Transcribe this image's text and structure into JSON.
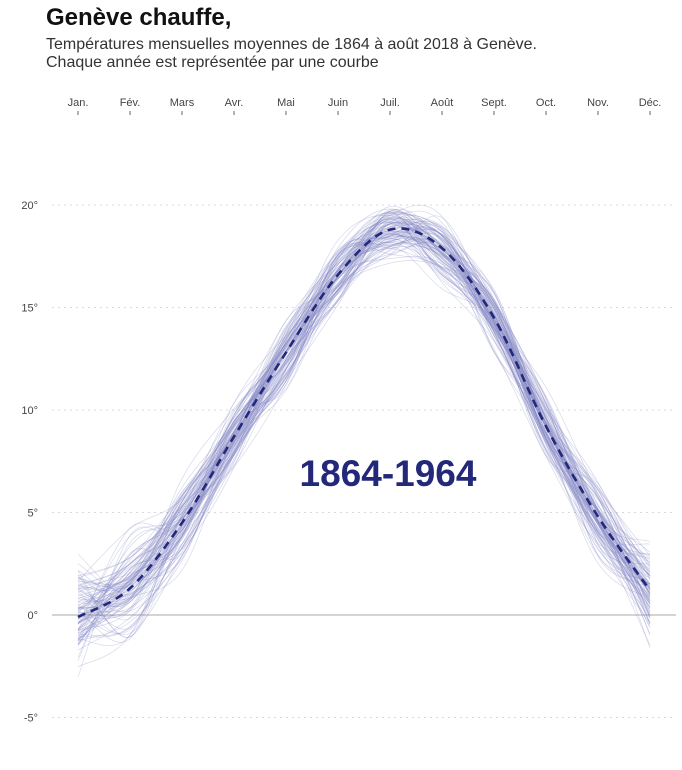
{
  "title": "Genève chauffe,",
  "subtitle_line1": "Températures mensuelles moyennes de 1864 à août 2018 à Genève.",
  "subtitle_line2": "Chaque année est représentée par une courbe",
  "chart_data": {
    "type": "line",
    "title": "Genève chauffe,",
    "xlabel": "",
    "ylabel": "",
    "categories": [
      "Jan.",
      "Fév.",
      "Mars",
      "Avr.",
      "Mai",
      "Juin",
      "Juil.",
      "Août",
      "Sept.",
      "Oct.",
      "Nov.",
      "Déc."
    ],
    "y_ticks": [
      -5,
      0,
      5,
      10,
      15,
      20
    ],
    "y_tick_labels": [
      "-5°",
      "0°",
      "5°",
      "10°",
      "15°",
      "20°"
    ],
    "ylim": [
      -7.5,
      24
    ],
    "grid": true,
    "annotation": "1864-1964",
    "colors": {
      "years": "#8286c4",
      "mean": "#232878",
      "zero": "#aaaaaa",
      "grid": "#d8d8d8"
    },
    "series": [
      {
        "values": [
          -0.1,
          1.3,
          4.5,
          8.7,
          12.8,
          16.6,
          18.8,
          17.9,
          14.5,
          9.2,
          4.8,
          1.2
        ],
        "style": "dashed"
      }
    ],
    "year_spread": [
      2.8,
      2.8,
      1.9,
      1.5,
      1.5,
      1.3,
      1.4,
      1.4,
      1.3,
      1.5,
      1.8,
      2.3
    ]
  }
}
